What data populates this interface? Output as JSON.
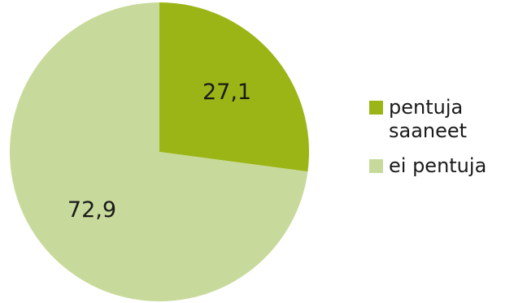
{
  "chart_data": {
    "type": "pie",
    "categories": [
      "pentuja\nsaaneet",
      "ei pentuja"
    ],
    "values": [
      27.1,
      72.9
    ],
    "value_labels": [
      "27,1",
      "72,9"
    ],
    "colors": [
      "#9bb516",
      "#c8da9b"
    ],
    "start_angle_deg": 0,
    "direction": "clockwise",
    "legend_position": "right"
  }
}
